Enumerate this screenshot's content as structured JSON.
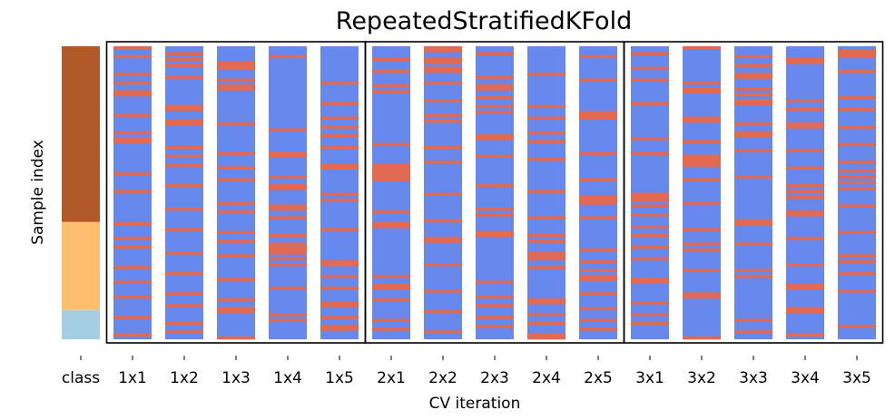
{
  "chart_data": {
    "type": "heatmap",
    "title": "RepeatedStratifiedKFold",
    "xlabel": "CV iteration",
    "ylabel": "Sample index",
    "tick_labels": [
      "class",
      "1x1",
      "1x2",
      "1x3",
      "1x4",
      "1x5",
      "2x1",
      "2x2",
      "2x3",
      "2x4",
      "2x5",
      "3x1",
      "3x2",
      "3x3",
      "3x4",
      "3x5"
    ],
    "n_samples": 100,
    "repeat_groups": [
      {
        "columns": [
          "1x1",
          "1x2",
          "1x3",
          "1x4",
          "1x5"
        ]
      },
      {
        "columns": [
          "2x1",
          "2x2",
          "2x3",
          "2x4",
          "2x5"
        ]
      },
      {
        "columns": [
          "3x1",
          "3x2",
          "3x3",
          "3x4",
          "3x5"
        ]
      }
    ],
    "class_segments": [
      {
        "class": 0,
        "start": 0,
        "end": 60,
        "color": "#b15928"
      },
      {
        "class": 1,
        "start": 60,
        "end": 90,
        "color": "#fdbf6f"
      },
      {
        "class": 2,
        "start": 90,
        "end": 100,
        "color": "#a6cee3"
      }
    ],
    "colors": {
      "train": "#6788ed",
      "test": "#e26952"
    },
    "test_indices": {
      "1x1": [
        0,
        9,
        15,
        16,
        23,
        29,
        31,
        32,
        43,
        49,
        60,
        65,
        68,
        75,
        80,
        85,
        92,
        98,
        3,
        12
      ],
      "1x2": [
        4,
        6,
        20,
        21,
        25,
        26,
        34,
        40,
        47,
        55,
        62,
        70,
        77,
        84,
        88,
        94,
        97,
        2,
        10,
        37
      ],
      "1x3": [
        5,
        6,
        7,
        11,
        13,
        26,
        36,
        45,
        53,
        63,
        71,
        79,
        86,
        89,
        90,
        99,
        14,
        41,
        56,
        66
      ],
      "1x4": [
        3,
        36,
        37,
        47,
        48,
        54,
        55,
        58,
        64,
        67,
        68,
        69,
        70,
        72,
        91,
        93,
        28,
        44,
        74,
        82
      ],
      "1x5": [
        12,
        27,
        30,
        34,
        40,
        41,
        50,
        62,
        73,
        74,
        82,
        87,
        88,
        92,
        95,
        96,
        19,
        24,
        52,
        78
      ],
      "2x1": [
        4,
        8,
        13,
        15,
        33,
        40,
        41,
        42,
        43,
        44,
        45,
        56,
        60,
        61,
        78,
        81,
        82,
        86,
        93,
        96
      ],
      "2x2": [
        0,
        1,
        4,
        5,
        7,
        8,
        12,
        18,
        23,
        25,
        34,
        39,
        50,
        59,
        65,
        66,
        74,
        83,
        90,
        97
      ],
      "2x3": [
        10,
        13,
        14,
        17,
        20,
        22,
        30,
        31,
        37,
        47,
        55,
        63,
        64,
        80,
        85,
        88,
        92,
        95,
        2,
        57
      ],
      "2x4": [
        9,
        20,
        24,
        29,
        32,
        38,
        49,
        58,
        64,
        66,
        70,
        71,
        72,
        75,
        86,
        87,
        91,
        94,
        98,
        99
      ],
      "2x5": [
        3,
        22,
        23,
        24,
        36,
        45,
        51,
        52,
        53,
        58,
        69,
        73,
        76,
        78,
        79,
        84,
        89,
        93,
        96,
        11
      ],
      "3x1": [
        2,
        7,
        11,
        19,
        31,
        36,
        50,
        51,
        52,
        54,
        57,
        61,
        64,
        68,
        72,
        79,
        80,
        87,
        91,
        94
      ],
      "3x2": [
        0,
        12,
        14,
        15,
        24,
        25,
        32,
        37,
        38,
        39,
        40,
        45,
        53,
        62,
        67,
        69,
        76,
        84,
        85,
        99
      ],
      "3x3": [
        6,
        9,
        10,
        14,
        16,
        18,
        19,
        26,
        29,
        30,
        35,
        44,
        59,
        60,
        67,
        76,
        78,
        93,
        97,
        3
      ],
      "3x4": [
        4,
        5,
        18,
        21,
        26,
        27,
        35,
        41,
        49,
        51,
        56,
        57,
        65,
        74,
        81,
        82,
        89,
        90,
        98,
        47
      ],
      "3x5": [
        1,
        2,
        3,
        8,
        17,
        21,
        27,
        33,
        39,
        42,
        44,
        46,
        48,
        54,
        63,
        71,
        73,
        77,
        83,
        95
      ]
    }
  }
}
